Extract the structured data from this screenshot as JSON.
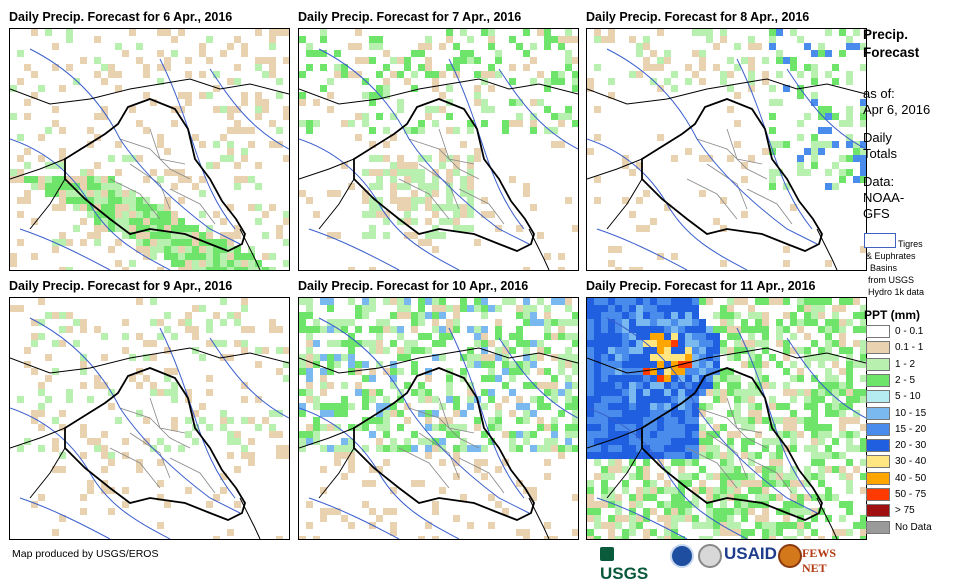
{
  "panels": [
    {
      "title": "Daily Precip. Forecast for 6 Apr., 2016",
      "pattern": "light-south"
    },
    {
      "title": "Daily Precip. Forecast for 7 Apr., 2016",
      "pattern": "central-green"
    },
    {
      "title": "Daily Precip. Forecast for 8 Apr., 2016",
      "pattern": "north-east"
    },
    {
      "title": "Daily Precip. Forecast for 9 Apr., 2016",
      "pattern": "sparse"
    },
    {
      "title": "Daily Precip. Forecast for 10 Apr., 2016",
      "pattern": "north-wide"
    },
    {
      "title": "Daily Precip. Forecast for 11 Apr., 2016",
      "pattern": "heavy-north"
    }
  ],
  "sidebar": {
    "title_line1": "Precip.",
    "title_line2": "Forecast",
    "asof_line1": "as of:",
    "asof_line2": "Apr 6, 2016",
    "totals_line1": "Daily",
    "totals_line2": "Totals",
    "data_line1": "Data:",
    "data_line2": "NOAA-",
    "data_line3": "GFS",
    "basin_line1": "Tigres",
    "basin_line2": "& Euphrates",
    "basin_line3": "Basins",
    "basin_line4": "from USGS",
    "basin_line5": "Hydro 1k data",
    "legend_title": "PPT (mm)"
  },
  "legend": [
    {
      "label": "0 - 0.1",
      "color": "#ffffff"
    },
    {
      "label": "0.1 - 1",
      "color": "#e8d2b0"
    },
    {
      "label": "1 - 2",
      "color": "#b8f0b0"
    },
    {
      "label": "2 - 5",
      "color": "#6ee56a"
    },
    {
      "label": "5 - 10",
      "color": "#b4ecf2"
    },
    {
      "label": "10 - 15",
      "color": "#7ab8f0"
    },
    {
      "label": "15 - 20",
      "color": "#4a8cec"
    },
    {
      "label": "20 - 30",
      "color": "#1f5fe0"
    },
    {
      "label": "30 - 40",
      "color": "#ffe680"
    },
    {
      "label": "40 - 50",
      "color": "#ffa500"
    },
    {
      "label": "50 - 75",
      "color": "#ff3a00"
    },
    {
      "label": "> 75",
      "color": "#a01010"
    },
    {
      "label": "No Data",
      "color": "#9a9a9a"
    }
  ],
  "credit": "Map produced by USGS/EROS",
  "logos": {
    "usgs": "USGS",
    "usaid": "USAID",
    "fewsnet": "FEWS NET"
  }
}
